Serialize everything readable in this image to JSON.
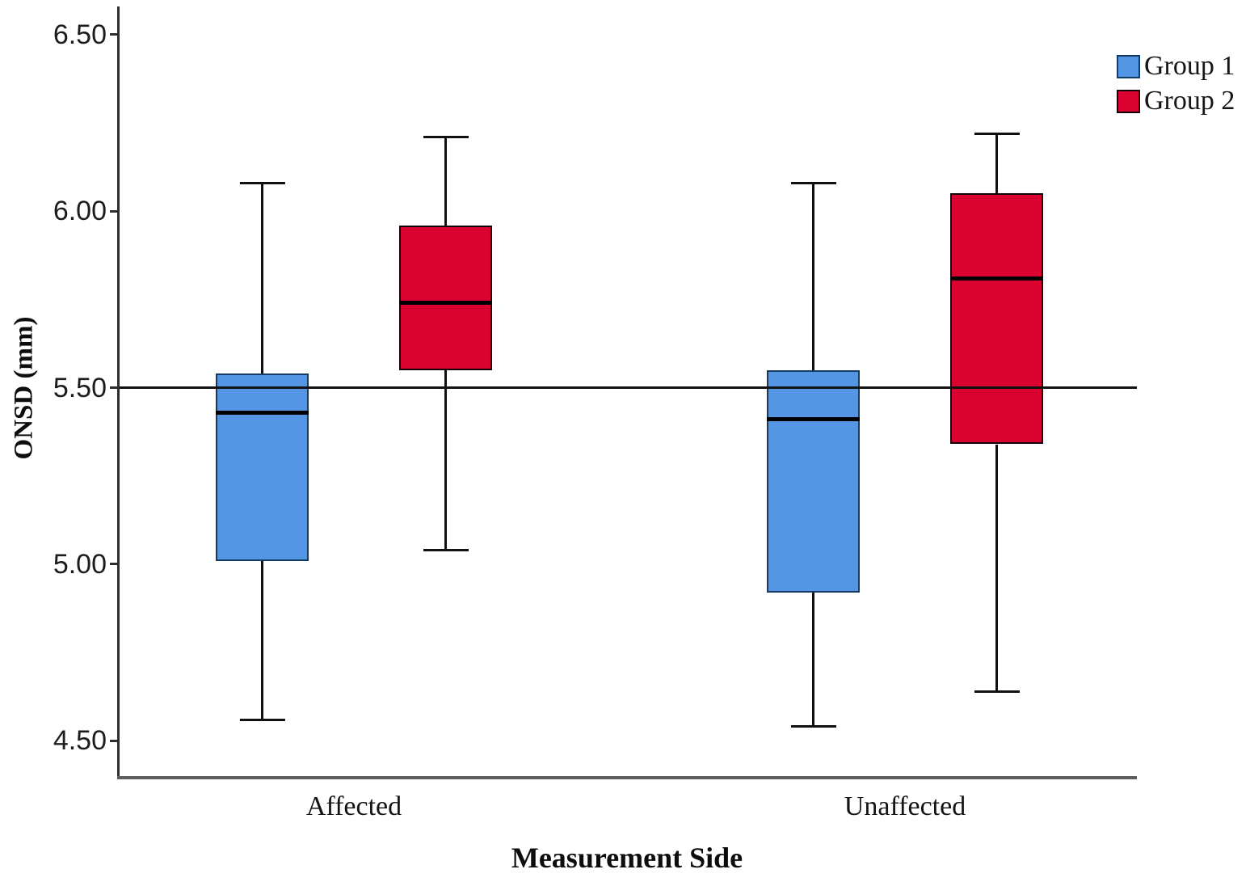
{
  "chart_data": {
    "type": "boxplot",
    "title": "",
    "ylabel": "ONSD (mm)",
    "xlabel": "Measurement Side",
    "categories": [
      "Affected",
      "Unaffected"
    ],
    "yticks": [
      "6.50",
      "6.00",
      "5.50",
      "5.00",
      "4.50"
    ],
    "ylim": [
      4.4,
      6.58
    ],
    "reference_line": 5.5,
    "grid": "off",
    "legend_position": "top-right",
    "series": [
      {
        "name": "Group 1",
        "fill": "#5596e4",
        "border": "#143a66",
        "boxes": [
          {
            "category": "Affected",
            "whisker_low": 4.56,
            "q1": 5.01,
            "median": 5.43,
            "q3": 5.54,
            "whisker_high": 6.08
          },
          {
            "category": "Unaffected",
            "whisker_low": 4.54,
            "q1": 4.92,
            "median": 5.41,
            "q3": 5.55,
            "whisker_high": 6.08
          }
        ]
      },
      {
        "name": "Group 2",
        "fill": "#d90231",
        "border": "#14020a",
        "boxes": [
          {
            "category": "Affected",
            "whisker_low": 5.04,
            "q1": 5.55,
            "median": 5.74,
            "q3": 5.96,
            "whisker_high": 6.21
          },
          {
            "category": "Unaffected",
            "whisker_low": 4.64,
            "q1": 5.34,
            "median": 5.81,
            "q3": 6.05,
            "whisker_high": 6.22
          }
        ]
      }
    ]
  }
}
